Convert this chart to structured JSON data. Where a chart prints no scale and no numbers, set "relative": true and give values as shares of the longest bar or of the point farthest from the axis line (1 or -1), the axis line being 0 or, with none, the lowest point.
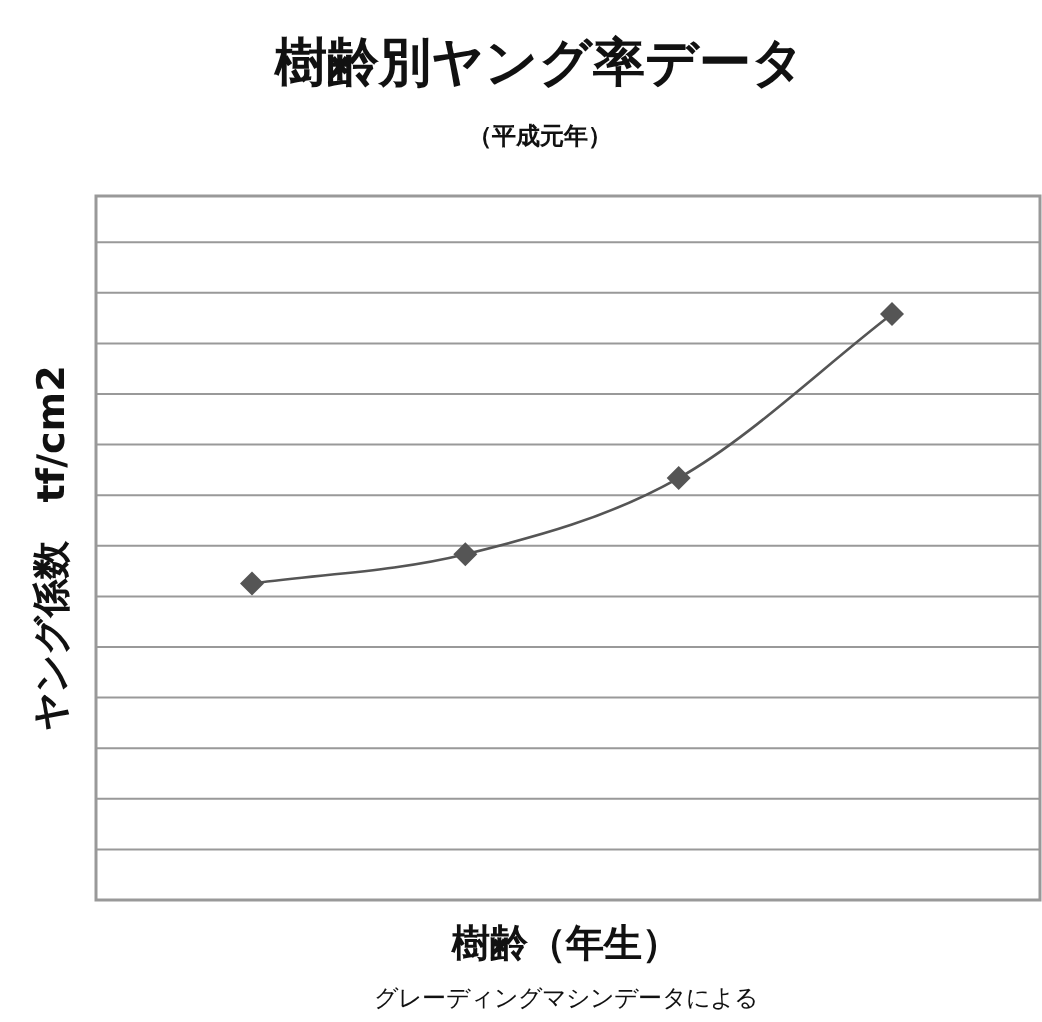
{
  "chart_data": {
    "type": "line",
    "title": "樹齢別ヤング率データ",
    "subtitle": "（平成元年）",
    "xlabel": "樹齢（年生）",
    "ylabel": "ヤング係数　tf/cm2",
    "annotations": [
      "グレーディングマシンデータによる"
    ],
    "relative": true,
    "categories": [
      null,
      null,
      null,
      null
    ],
    "series": [
      {
        "color": "#555555",
        "values": [
          0.54,
          0.59,
          0.72,
          1
        ]
      }
    ],
    "marker": "diamond",
    "line_style": "solid",
    "grid": "y"
  }
}
